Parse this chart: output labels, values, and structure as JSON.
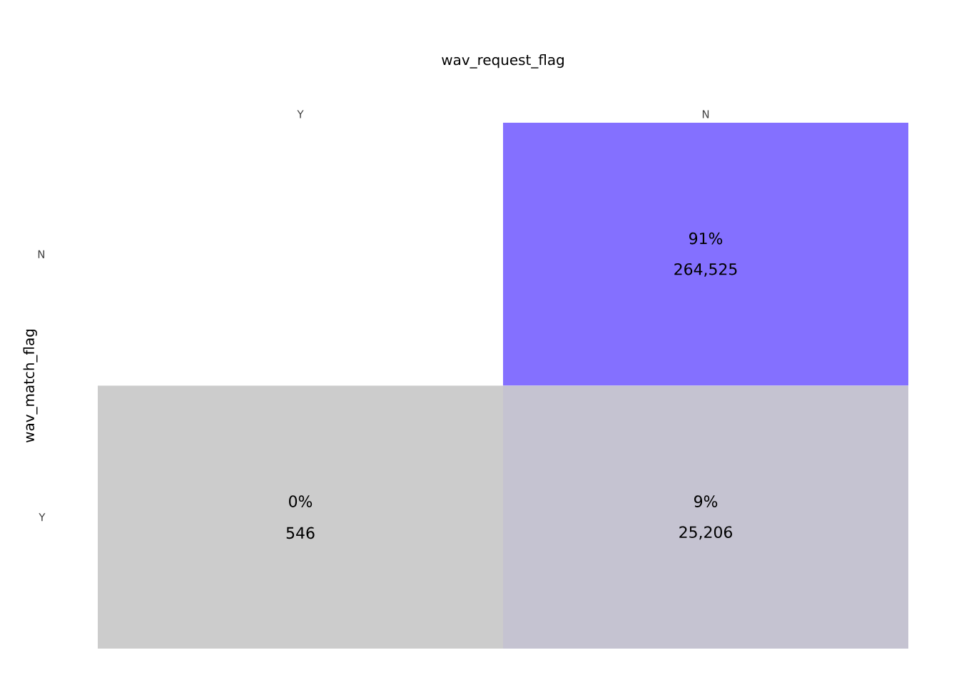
{
  "chart_data": {
    "type": "heatmap",
    "xlabel": "wav_request_flag",
    "ylabel": "wav_match_flag",
    "categories": [
      "Y",
      "N"
    ],
    "y_categories": [
      "N",
      "Y"
    ],
    "cells": [
      [
        null,
        264525
      ],
      [
        546,
        25206
      ]
    ],
    "cell_labels": [
      [
        null,
        "264,525"
      ],
      [
        "546",
        "25,206"
      ]
    ],
    "annotations": [
      "91%",
      "0%",
      "9%"
    ],
    "colors": [
      [
        null,
        "#8470ff"
      ],
      [
        "#cccccc",
        "#c6c3d2"
      ]
    ],
    "grid": false
  }
}
